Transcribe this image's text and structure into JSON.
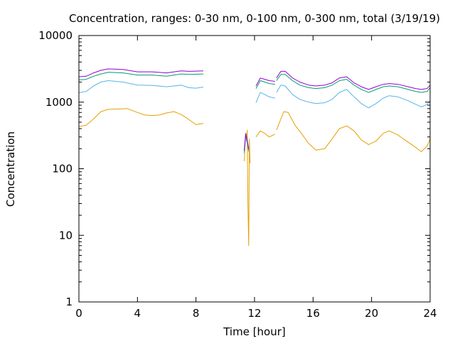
{
  "chart_data": {
    "type": "line",
    "title": "Concentration, ranges: 0-30 nm, 0-100 nm, 0-300 nm, total (3/19/19)",
    "xlabel": "Time [hour]",
    "ylabel": "Concentration",
    "x_scale": "linear",
    "y_scale": "log",
    "xlim": [
      0,
      24
    ],
    "ylim": [
      1,
      10000
    ],
    "x_ticks": [
      "0",
      "4",
      "8",
      "12",
      "16",
      "20",
      "24"
    ],
    "y_ticks": [
      "1",
      "10",
      "100",
      "1000",
      "10000"
    ],
    "x_tick_values": [
      0,
      4,
      8,
      12,
      16,
      20,
      24
    ],
    "y_tick_values": [
      1,
      10,
      100,
      1000,
      10000
    ],
    "grid": false,
    "legend": "none",
    "series": [
      {
        "color": "#e69f00",
        "segments": [
          [
            [
              0,
              430
            ],
            [
              0.5,
              450
            ],
            [
              1,
              560
            ],
            [
              1.5,
              720
            ],
            [
              2,
              780
            ],
            [
              3,
              790
            ],
            [
              3.3,
              800
            ],
            [
              4,
              700
            ],
            [
              4.5,
              640
            ],
            [
              5,
              630
            ],
            [
              5.5,
              640
            ],
            [
              6,
              690
            ],
            [
              6.5,
              720
            ],
            [
              7,
              650
            ],
            [
              7.5,
              550
            ],
            [
              8,
              460
            ],
            [
              8.5,
              480
            ]
          ],
          [
            [
              11.3,
              130
            ],
            [
              11.35,
              220
            ],
            [
              11.4,
              330
            ],
            [
              11.45,
              260
            ],
            [
              11.5,
              380
            ],
            [
              11.55,
              30
            ],
            [
              11.6,
              7
            ],
            [
              11.65,
              280
            ],
            [
              11.7,
              120
            ]
          ],
          [
            [
              12.1,
              300
            ],
            [
              12.4,
              370
            ],
            [
              12.7,
              340
            ],
            [
              13,
              300
            ],
            [
              13.4,
              330
            ]
          ],
          [
            [
              13.5,
              380
            ],
            [
              14,
              720
            ],
            [
              14.3,
              700
            ],
            [
              14.8,
              440
            ],
            [
              15.2,
              340
            ],
            [
              15.7,
              240
            ],
            [
              16.2,
              190
            ],
            [
              16.8,
              200
            ],
            [
              17.3,
              280
            ],
            [
              17.8,
              400
            ],
            [
              18.3,
              440
            ],
            [
              18.8,
              370
            ],
            [
              19.3,
              270
            ],
            [
              19.8,
              230
            ],
            [
              20.3,
              260
            ],
            [
              20.8,
              340
            ],
            [
              21.2,
              370
            ],
            [
              21.8,
              320
            ],
            [
              22.5,
              250
            ],
            [
              23,
              210
            ],
            [
              23.4,
              180
            ],
            [
              23.8,
              220
            ],
            [
              24,
              280
            ]
          ]
        ]
      },
      {
        "color": "#56b4e9",
        "segments": [
          [
            [
              0,
              1380
            ],
            [
              0.5,
              1450
            ],
            [
              1,
              1750
            ],
            [
              1.5,
              2000
            ],
            [
              2,
              2100
            ],
            [
              3,
              2000
            ],
            [
              4,
              1800
            ],
            [
              5,
              1780
            ],
            [
              6,
              1700
            ],
            [
              6.5,
              1750
            ],
            [
              7,
              1800
            ],
            [
              7.5,
              1650
            ],
            [
              8,
              1620
            ],
            [
              8.5,
              1680
            ]
          ],
          [
            [
              11.3,
              170
            ],
            [
              11.4,
              320
            ],
            [
              11.5,
              250
            ],
            [
              11.6,
              180
            ]
          ],
          [
            [
              12.1,
              980
            ],
            [
              12.4,
              1400
            ],
            [
              12.7,
              1300
            ],
            [
              13,
              1200
            ],
            [
              13.4,
              1150
            ]
          ],
          [
            [
              13.5,
              1400
            ],
            [
              13.8,
              1800
            ],
            [
              14.1,
              1750
            ],
            [
              14.6,
              1300
            ],
            [
              15.1,
              1100
            ],
            [
              15.7,
              1000
            ],
            [
              16.2,
              950
            ],
            [
              16.8,
              980
            ],
            [
              17.3,
              1100
            ],
            [
              17.8,
              1400
            ],
            [
              18.3,
              1550
            ],
            [
              18.8,
              1200
            ],
            [
              19.3,
              950
            ],
            [
              19.8,
              820
            ],
            [
              20.3,
              950
            ],
            [
              20.8,
              1150
            ],
            [
              21.2,
              1250
            ],
            [
              21.8,
              1200
            ],
            [
              22.5,
              1050
            ],
            [
              23,
              930
            ],
            [
              23.4,
              850
            ],
            [
              23.8,
              920
            ],
            [
              24,
              1050
            ]
          ]
        ]
      },
      {
        "color": "#009e73",
        "segments": [
          [
            [
              0,
              2150
            ],
            [
              0.5,
              2200
            ],
            [
              1,
              2450
            ],
            [
              1.5,
              2650
            ],
            [
              2,
              2800
            ],
            [
              3,
              2750
            ],
            [
              4,
              2550
            ],
            [
              5,
              2550
            ],
            [
              6,
              2450
            ],
            [
              6.5,
              2550
            ],
            [
              7,
              2650
            ],
            [
              7.5,
              2600
            ],
            [
              8,
              2620
            ],
            [
              8.5,
              2650
            ]
          ],
          [
            [
              11.3,
              180
            ],
            [
              11.4,
              330
            ],
            [
              11.5,
              260
            ],
            [
              11.6,
              190
            ]
          ],
          [
            [
              12.1,
              1600
            ],
            [
              12.4,
              2100
            ],
            [
              12.7,
              2000
            ],
            [
              13,
              1900
            ],
            [
              13.4,
              1850
            ]
          ],
          [
            [
              13.5,
              2100
            ],
            [
              13.8,
              2600
            ],
            [
              14.1,
              2600
            ],
            [
              14.6,
              2100
            ],
            [
              15.1,
              1800
            ],
            [
              15.7,
              1650
            ],
            [
              16.2,
              1600
            ],
            [
              16.8,
              1650
            ],
            [
              17.3,
              1800
            ],
            [
              17.8,
              2100
            ],
            [
              18.3,
              2200
            ],
            [
              18.8,
              1800
            ],
            [
              19.3,
              1550
            ],
            [
              19.8,
              1400
            ],
            [
              20.3,
              1550
            ],
            [
              20.8,
              1700
            ],
            [
              21.2,
              1750
            ],
            [
              21.8,
              1700
            ],
            [
              22.5,
              1550
            ],
            [
              23,
              1450
            ],
            [
              23.4,
              1400
            ],
            [
              23.8,
              1450
            ],
            [
              24,
              1650
            ]
          ]
        ]
      },
      {
        "color": "#9400d3",
        "segments": [
          [
            [
              0,
              2400
            ],
            [
              0.5,
              2450
            ],
            [
              1,
              2750
            ],
            [
              1.5,
              3000
            ],
            [
              2,
              3150
            ],
            [
              3,
              3100
            ],
            [
              4,
              2850
            ],
            [
              5,
              2850
            ],
            [
              6,
              2750
            ],
            [
              6.5,
              2850
            ],
            [
              7,
              2950
            ],
            [
              7.5,
              2900
            ],
            [
              8,
              2920
            ],
            [
              8.5,
              2950
            ]
          ],
          [
            [
              11.3,
              190
            ],
            [
              11.4,
              340
            ],
            [
              11.5,
              270
            ],
            [
              11.6,
              200
            ]
          ],
          [
            [
              12.1,
              1750
            ],
            [
              12.4,
              2300
            ],
            [
              12.7,
              2200
            ],
            [
              13,
              2100
            ],
            [
              13.4,
              2050
            ]
          ],
          [
            [
              13.5,
              2300
            ],
            [
              13.8,
              2900
            ],
            [
              14.1,
              2900
            ],
            [
              14.6,
              2300
            ],
            [
              15.1,
              2000
            ],
            [
              15.7,
              1800
            ],
            [
              16.2,
              1750
            ],
            [
              16.8,
              1800
            ],
            [
              17.3,
              1950
            ],
            [
              17.8,
              2300
            ],
            [
              18.3,
              2400
            ],
            [
              18.8,
              1950
            ],
            [
              19.3,
              1700
            ],
            [
              19.8,
              1550
            ],
            [
              20.3,
              1700
            ],
            [
              20.8,
              1850
            ],
            [
              21.2,
              1900
            ],
            [
              21.8,
              1850
            ],
            [
              22.5,
              1700
            ],
            [
              23,
              1600
            ],
            [
              23.4,
              1550
            ],
            [
              23.8,
              1600
            ],
            [
              24,
              1800
            ]
          ]
        ]
      }
    ]
  }
}
